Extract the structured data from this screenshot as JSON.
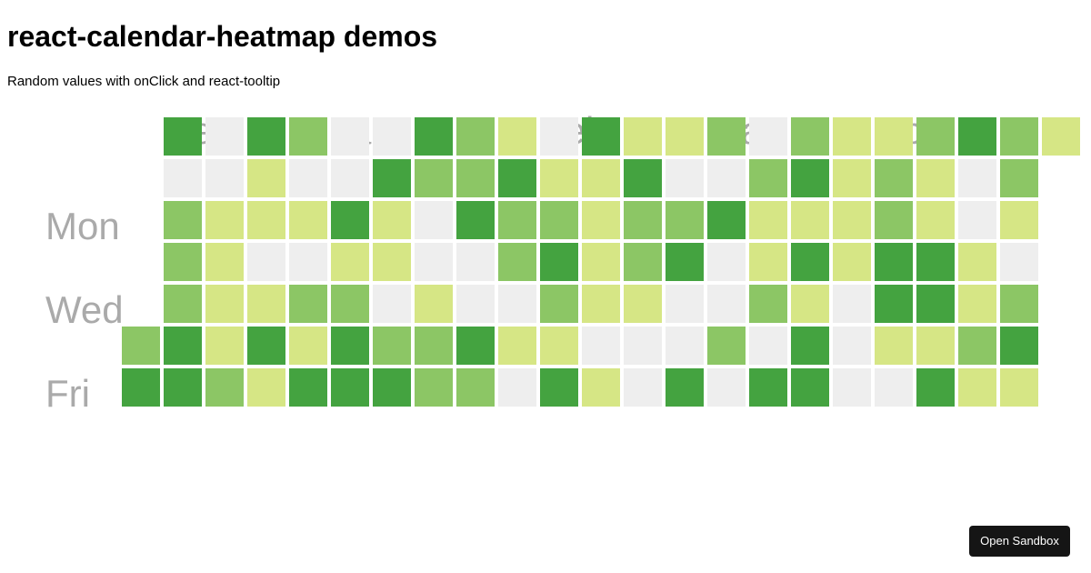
{
  "header": {
    "title": "react-calendar-heatmap demos",
    "subtitle": "Random values with onClick and react-tooltip"
  },
  "heatmap": {
    "months": [
      "Dec",
      "Jan",
      "Feb",
      "Mar",
      "Apr"
    ],
    "weekday_labels": [
      "Mon",
      "Wed",
      "Fri"
    ],
    "colors": {
      "0": "#eeeeee",
      "1": "#d6e685",
      "2": "#8cc665",
      "3": "#44a340"
    },
    "weeks": [
      [
        null,
        null,
        null,
        null,
        null,
        2,
        3
      ],
      [
        3,
        0,
        2,
        2,
        2,
        3,
        3
      ],
      [
        0,
        0,
        1,
        1,
        1,
        1,
        2
      ],
      [
        3,
        1,
        1,
        0,
        1,
        3,
        1
      ],
      [
        2,
        0,
        1,
        0,
        2,
        1,
        3
      ],
      [
        0,
        0,
        3,
        1,
        2,
        3,
        3
      ],
      [
        0,
        3,
        1,
        1,
        0,
        2,
        3
      ],
      [
        3,
        2,
        0,
        0,
        1,
        2,
        2
      ],
      [
        2,
        2,
        3,
        0,
        0,
        3,
        2
      ],
      [
        1,
        3,
        2,
        2,
        0,
        1,
        0
      ],
      [
        0,
        1,
        2,
        3,
        2,
        1,
        3
      ],
      [
        3,
        1,
        1,
        1,
        1,
        0,
        1
      ],
      [
        1,
        3,
        2,
        2,
        1,
        0,
        0
      ],
      [
        1,
        0,
        2,
        3,
        0,
        0,
        3
      ],
      [
        2,
        0,
        3,
        0,
        0,
        2,
        0
      ],
      [
        0,
        2,
        1,
        1,
        2,
        0,
        3
      ],
      [
        2,
        3,
        1,
        3,
        1,
        3,
        3
      ],
      [
        1,
        1,
        1,
        1,
        0,
        0,
        0
      ],
      [
        1,
        2,
        2,
        3,
        3,
        1,
        0
      ],
      [
        2,
        1,
        1,
        3,
        3,
        1,
        3
      ],
      [
        3,
        0,
        0,
        1,
        1,
        2,
        1
      ],
      [
        2,
        2,
        1,
        0,
        2,
        3,
        1
      ],
      [
        1,
        null,
        null,
        null,
        null,
        null,
        null
      ]
    ]
  },
  "footer": {
    "open_sandbox_label": "Open Sandbox"
  }
}
